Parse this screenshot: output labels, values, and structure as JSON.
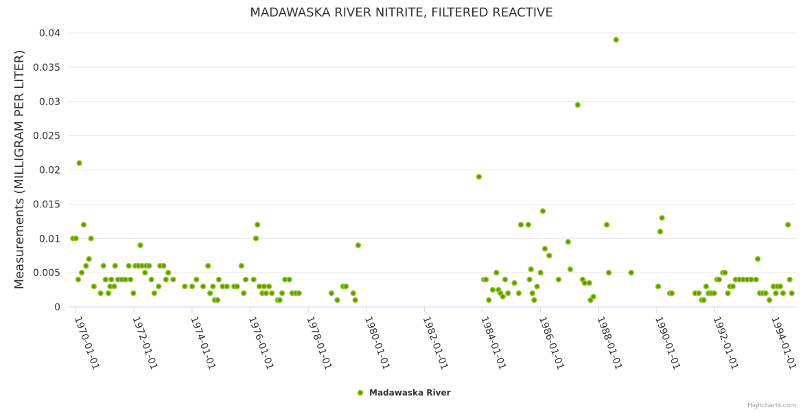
{
  "chart_data": {
    "type": "scatter",
    "title": "MADAWASKA RIVER NITRITE, FILTERED REACTIVE",
    "xlabel": "",
    "ylabel": "Measurements (MILLIGRAM PER LITER)",
    "ylim": [
      0,
      0.04
    ],
    "yticks": [
      "0",
      "0.005",
      "0.01",
      "0.015",
      "0.02",
      "0.025",
      "0.03",
      "0.035",
      "0.04"
    ],
    "xlim": [
      1969.75,
      1994.8
    ],
    "xticks": [
      "1970-01-01",
      "1972-01-01",
      "1974-01-01",
      "1976-01-01",
      "1978-01-01",
      "1980-01-01",
      "1982-01-01",
      "1984-01-01",
      "1986-01-01",
      "1988-01-01",
      "1990-01-01",
      "1992-01-01",
      "1994-01-01"
    ],
    "series": [
      {
        "name": "Madawaska River",
        "color": "#669900",
        "points": [
          [
            1969.9,
            0.01
          ],
          [
            1970.0,
            0.01
          ],
          [
            1970.08,
            0.004
          ],
          [
            1970.12,
            0.021
          ],
          [
            1970.2,
            0.005
          ],
          [
            1970.27,
            0.012
          ],
          [
            1970.35,
            0.006
          ],
          [
            1970.45,
            0.007
          ],
          [
            1970.52,
            0.01
          ],
          [
            1970.62,
            0.003
          ],
          [
            1970.85,
            0.002
          ],
          [
            1970.95,
            0.006
          ],
          [
            1971.02,
            0.004
          ],
          [
            1971.12,
            0.002
          ],
          [
            1971.18,
            0.003
          ],
          [
            1971.22,
            0.004
          ],
          [
            1971.32,
            0.003
          ],
          [
            1971.35,
            0.006
          ],
          [
            1971.45,
            0.004
          ],
          [
            1971.58,
            0.004
          ],
          [
            1971.7,
            0.004
          ],
          [
            1971.82,
            0.006
          ],
          [
            1971.88,
            0.004
          ],
          [
            1971.98,
            0.002
          ],
          [
            1972.05,
            0.006
          ],
          [
            1972.15,
            0.006
          ],
          [
            1972.22,
            0.009
          ],
          [
            1972.28,
            0.006
          ],
          [
            1972.38,
            0.005
          ],
          [
            1972.42,
            0.006
          ],
          [
            1972.52,
            0.006
          ],
          [
            1972.6,
            0.004
          ],
          [
            1972.7,
            0.002
          ],
          [
            1972.85,
            0.003
          ],
          [
            1972.9,
            0.006
          ],
          [
            1973.02,
            0.006
          ],
          [
            1973.1,
            0.004
          ],
          [
            1973.18,
            0.005
          ],
          [
            1973.35,
            0.004
          ],
          [
            1973.75,
            0.003
          ],
          [
            1974.0,
            0.003
          ],
          [
            1974.15,
            0.004
          ],
          [
            1974.38,
            0.003
          ],
          [
            1974.55,
            0.006
          ],
          [
            1974.62,
            0.002
          ],
          [
            1974.72,
            0.003
          ],
          [
            1974.78,
            0.001
          ],
          [
            1974.88,
            0.001
          ],
          [
            1974.92,
            0.004
          ],
          [
            1975.05,
            0.003
          ],
          [
            1975.2,
            0.003
          ],
          [
            1975.45,
            0.003
          ],
          [
            1975.55,
            0.003
          ],
          [
            1975.7,
            0.006
          ],
          [
            1975.78,
            0.002
          ],
          [
            1975.85,
            0.004
          ],
          [
            1976.12,
            0.004
          ],
          [
            1976.2,
            0.01
          ],
          [
            1976.25,
            0.012
          ],
          [
            1976.32,
            0.003
          ],
          [
            1976.42,
            0.002
          ],
          [
            1976.48,
            0.003
          ],
          [
            1976.55,
            0.002
          ],
          [
            1976.65,
            0.003
          ],
          [
            1976.75,
            0.002
          ],
          [
            1976.95,
            0.001
          ],
          [
            1977.02,
            0.001
          ],
          [
            1977.1,
            0.002
          ],
          [
            1977.2,
            0.004
          ],
          [
            1977.35,
            0.004
          ],
          [
            1977.45,
            0.002
          ],
          [
            1977.58,
            0.002
          ],
          [
            1977.68,
            0.002
          ],
          [
            1978.8,
            0.002
          ],
          [
            1979.0,
            0.001
          ],
          [
            1979.2,
            0.003
          ],
          [
            1979.3,
            0.003
          ],
          [
            1979.55,
            0.002
          ],
          [
            1979.62,
            0.001
          ],
          [
            1979.72,
            0.009
          ],
          [
            1983.88,
            0.019
          ],
          [
            1984.05,
            0.004
          ],
          [
            1984.12,
            0.004
          ],
          [
            1984.22,
            0.001
          ],
          [
            1984.35,
            0.0025
          ],
          [
            1984.48,
            0.005
          ],
          [
            1984.55,
            0.0025
          ],
          [
            1984.62,
            0.002
          ],
          [
            1984.7,
            0.0015
          ],
          [
            1984.78,
            0.004
          ],
          [
            1984.88,
            0.002
          ],
          [
            1985.1,
            0.0035
          ],
          [
            1985.25,
            0.002
          ],
          [
            1985.32,
            0.012
          ],
          [
            1985.58,
            0.012
          ],
          [
            1985.62,
            0.004
          ],
          [
            1985.67,
            0.0055
          ],
          [
            1985.72,
            0.002
          ],
          [
            1985.78,
            0.001
          ],
          [
            1985.88,
            0.003
          ],
          [
            1986.0,
            0.005
          ],
          [
            1986.08,
            0.014
          ],
          [
            1986.15,
            0.0085
          ],
          [
            1986.3,
            0.0075
          ],
          [
            1986.62,
            0.004
          ],
          [
            1986.95,
            0.0095
          ],
          [
            1987.02,
            0.0055
          ],
          [
            1987.28,
            0.0295
          ],
          [
            1987.45,
            0.004
          ],
          [
            1987.52,
            0.0035
          ],
          [
            1987.68,
            0.0035
          ],
          [
            1987.72,
            0.001
          ],
          [
            1987.82,
            0.0015
          ],
          [
            1988.28,
            0.012
          ],
          [
            1988.35,
            0.005
          ],
          [
            1988.6,
            0.039
          ],
          [
            1989.12,
            0.005
          ],
          [
            1990.05,
            0.003
          ],
          [
            1990.12,
            0.011
          ],
          [
            1990.18,
            0.013
          ],
          [
            1990.45,
            0.002
          ],
          [
            1990.52,
            0.002
          ],
          [
            1991.32,
            0.002
          ],
          [
            1991.45,
            0.002
          ],
          [
            1991.55,
            0.001
          ],
          [
            1991.62,
            0.001
          ],
          [
            1991.7,
            0.003
          ],
          [
            1991.78,
            0.002
          ],
          [
            1991.88,
            0.002
          ],
          [
            1991.98,
            0.002
          ],
          [
            1992.08,
            0.004
          ],
          [
            1992.15,
            0.004
          ],
          [
            1992.28,
            0.005
          ],
          [
            1992.35,
            0.005
          ],
          [
            1992.45,
            0.002
          ],
          [
            1992.52,
            0.003
          ],
          [
            1992.62,
            0.003
          ],
          [
            1992.72,
            0.004
          ],
          [
            1992.85,
            0.004
          ],
          [
            1992.98,
            0.004
          ],
          [
            1993.12,
            0.004
          ],
          [
            1993.25,
            0.004
          ],
          [
            1993.42,
            0.004
          ],
          [
            1993.48,
            0.007
          ],
          [
            1993.55,
            0.002
          ],
          [
            1993.65,
            0.002
          ],
          [
            1993.75,
            0.002
          ],
          [
            1993.88,
            0.001
          ],
          [
            1994.02,
            0.003
          ],
          [
            1994.1,
            0.002
          ],
          [
            1994.15,
            0.003
          ],
          [
            1994.25,
            0.003
          ],
          [
            1994.35,
            0.002
          ],
          [
            1994.52,
            0.012
          ],
          [
            1994.58,
            0.004
          ],
          [
            1994.65,
            0.002
          ]
        ]
      }
    ],
    "legend": {
      "position": "bottom-center"
    },
    "credits": "Highcharts.com",
    "grid": true
  }
}
